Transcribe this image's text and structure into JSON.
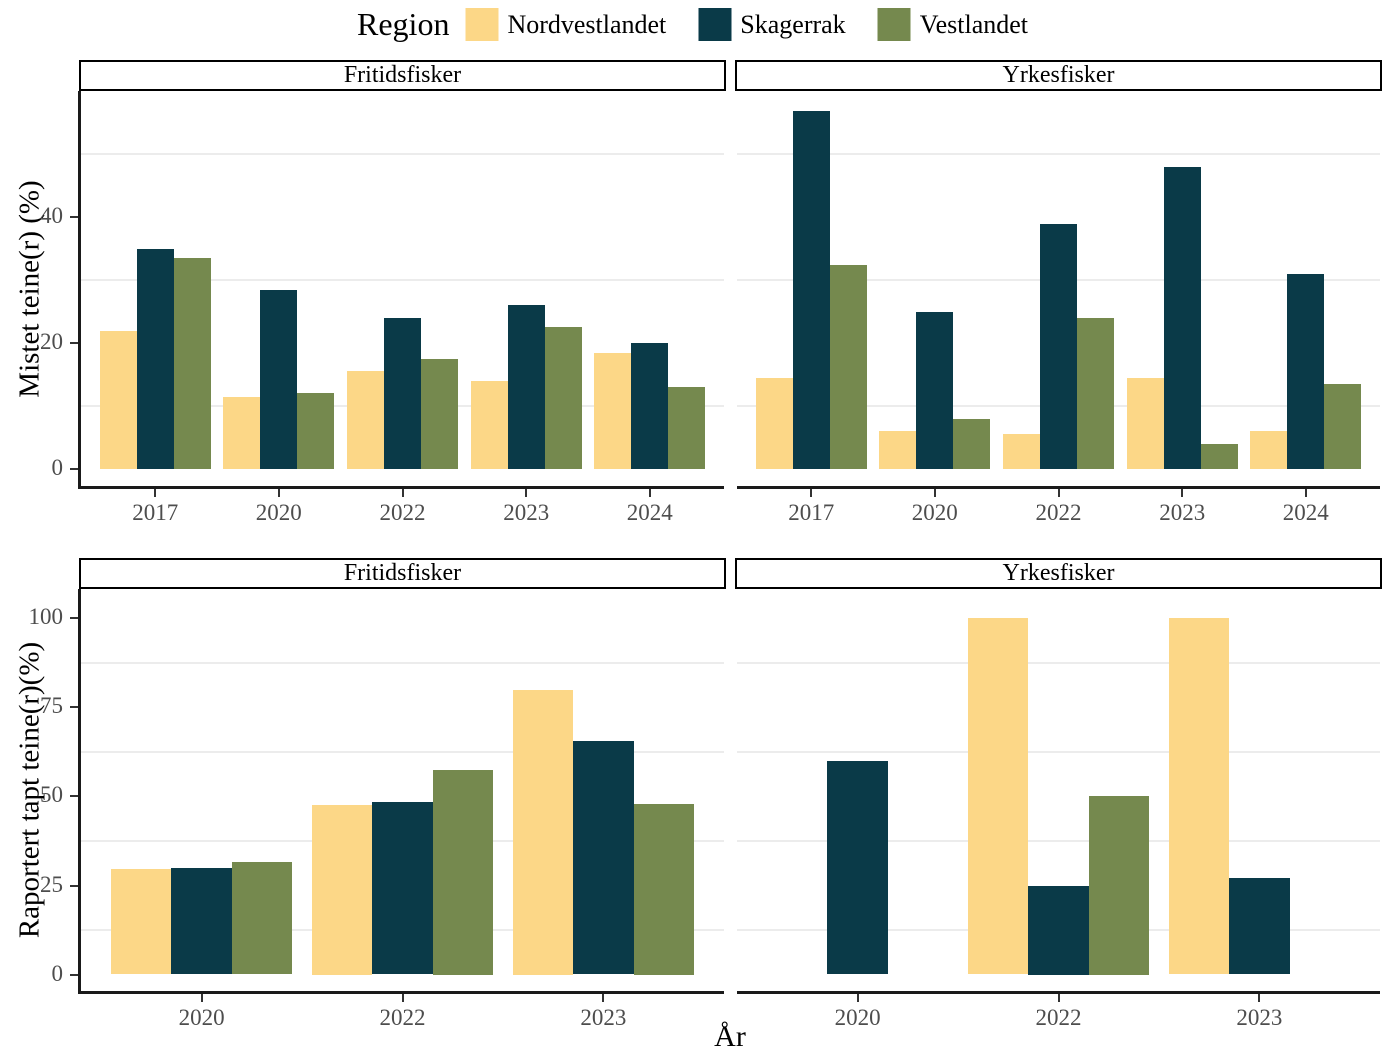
{
  "legend": {
    "title": "Region",
    "items": [
      {
        "label": "Nordvestlandet",
        "color": "#FCD787"
      },
      {
        "label": "Skagerrak",
        "color": "#0A3A48"
      },
      {
        "label": "Vestlandet",
        "color": "#75894E"
      }
    ]
  },
  "xlabel": "År",
  "style": {
    "grid_color": "#ECECEC",
    "axis_color": "#1A1A1A",
    "tick_label_color": "#4D4D4D",
    "background": "#FFFFFF"
  },
  "chart_data": {
    "type": "bar",
    "layout": "grouped, faceted 2 rows x 2 columns, legend top-center, horizontal minor gridlines only",
    "series_names": [
      "Nordvestlandet",
      "Skagerrak",
      "Vestlandet"
    ],
    "series_colors": [
      "#FCD787",
      "#0A3A48",
      "#75894E"
    ],
    "rows": [
      {
        "ylabel": "Mistet teine(r) (%)",
        "categories": [
          "2017",
          "2020",
          "2022",
          "2023",
          "2024"
        ],
        "yticks": [
          0,
          20,
          40
        ],
        "minor_gridlines": [
          10,
          30,
          50
        ],
        "ylim": [
          -2.9,
          60.1
        ],
        "panels": [
          {
            "facet": "Fritidsfisker",
            "series": [
              {
                "name": "Nordvestlandet",
                "values": [
                  22,
                  11.5,
                  15.5,
                  14,
                  18.5
                ]
              },
              {
                "name": "Skagerrak",
                "values": [
                  35,
                  28.5,
                  24,
                  26,
                  20
                ]
              },
              {
                "name": "Vestlandet",
                "values": [
                  33.5,
                  12,
                  17.5,
                  22.5,
                  13
                ]
              }
            ]
          },
          {
            "facet": "Yrkesfisker",
            "series": [
              {
                "name": "Nordvestlandet",
                "values": [
                  14.5,
                  6,
                  5.5,
                  14.5,
                  6
                ]
              },
              {
                "name": "Skagerrak",
                "values": [
                  57,
                  25,
                  39,
                  48,
                  31
                ]
              },
              {
                "name": "Vestlandet",
                "values": [
                  32.5,
                  8,
                  24,
                  4,
                  13.5
                ]
              }
            ]
          }
        ]
      },
      {
        "ylabel": "Raportert tapt teine(r)(%)",
        "categories": [
          "2020",
          "2022",
          "2023"
        ],
        "yticks": [
          0,
          25,
          50,
          75,
          100
        ],
        "minor_gridlines": [
          12.5,
          37.5,
          62.5,
          87.5
        ],
        "ylim": [
          -4.9,
          108.2
        ],
        "panels": [
          {
            "facet": "Fritidsfisker",
            "series": [
              {
                "name": "Nordvestlandet",
                "values": [
                  29.5,
                  47.5,
                  80
                ]
              },
              {
                "name": "Skagerrak",
                "values": [
                  30,
                  48.5,
                  65.5
                ]
              },
              {
                "name": "Vestlandet",
                "values": [
                  31.5,
                  57.5,
                  48
                ]
              }
            ]
          },
          {
            "facet": "Yrkesfisker",
            "series": [
              {
                "name": "Nordvestlandet",
                "values": [
                  null,
                  100,
                  100
                ]
              },
              {
                "name": "Skagerrak",
                "values": [
                  60,
                  25,
                  27
                ]
              },
              {
                "name": "Vestlandet",
                "values": [
                  null,
                  50,
                  null
                ]
              }
            ]
          }
        ]
      }
    ]
  }
}
